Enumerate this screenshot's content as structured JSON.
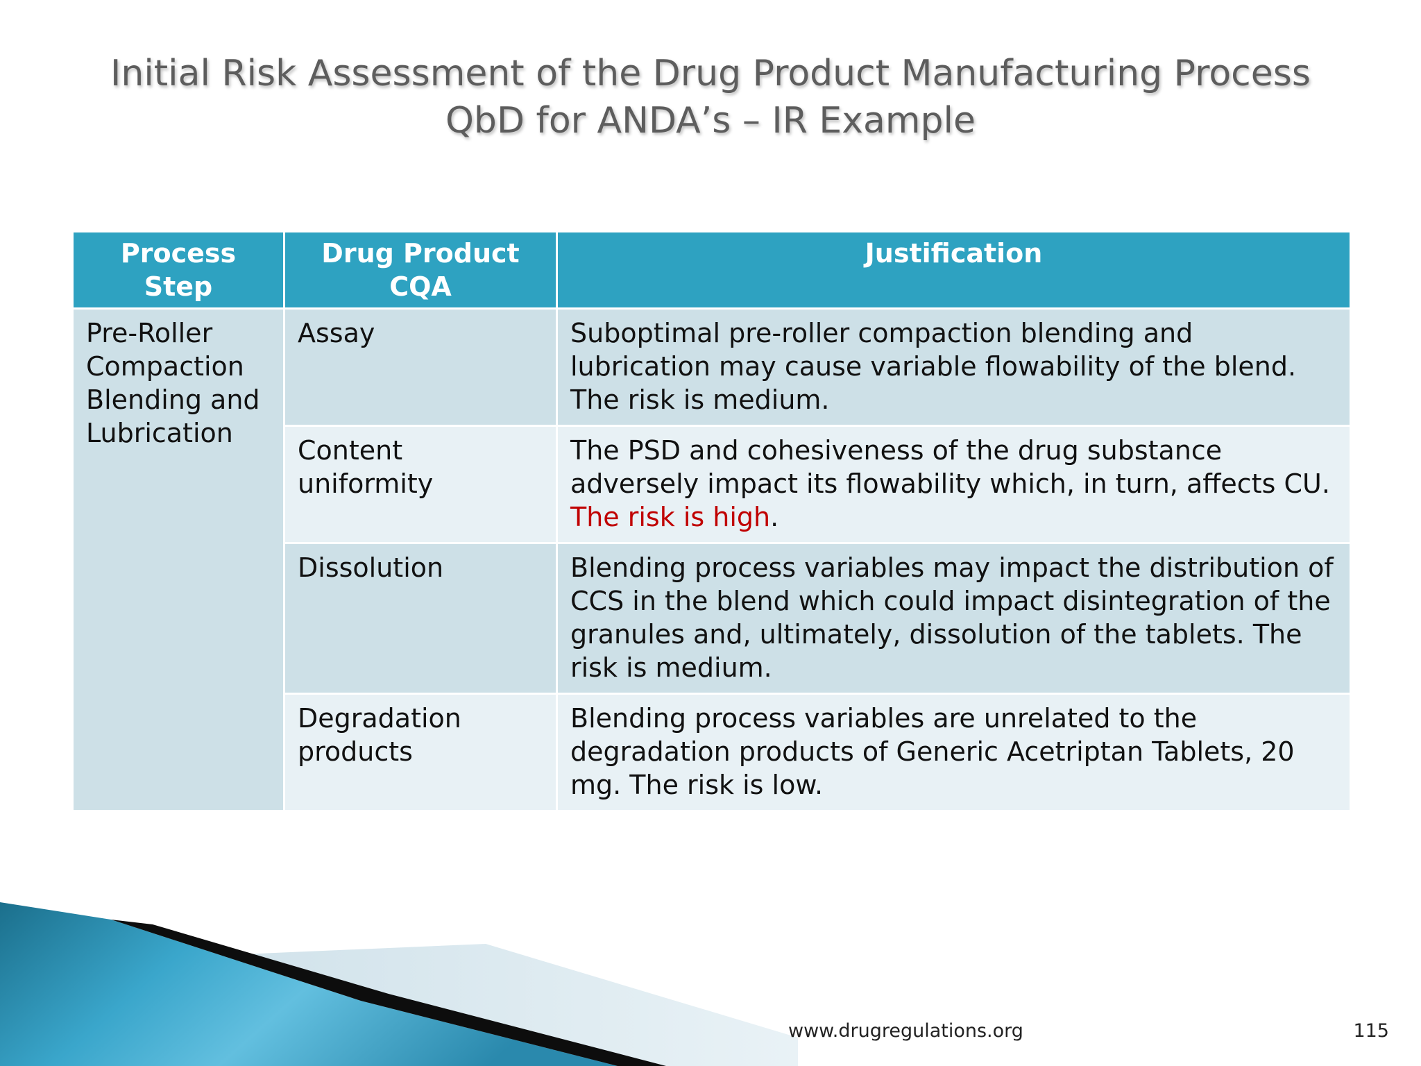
{
  "title": {
    "line1": "Initial Risk Assessment of the Drug Product Manufacturing Process",
    "line2": "QbD for ANDA’s – IR Example"
  },
  "table": {
    "headers": [
      "Process Step",
      "Drug Product CQA",
      "Justification"
    ],
    "process_step": "Pre-Roller Compaction Blending and Lubrication",
    "rows": [
      {
        "cqa": "Assay",
        "justification": "Suboptimal pre-roller compaction blending and lubrication may cause variable flowability of the blend. The risk is medium."
      },
      {
        "cqa": "Content uniformity",
        "justification_pre": "The PSD and cohesiveness of the drug substance adversely impact its flowability which, in turn, affects CU. ",
        "justification_highlight": "The risk is high",
        "justification_post": "."
      },
      {
        "cqa": "Dissolution",
        "justification": "Blending process variables may impact the distribution of CCS in the blend which could impact disintegration of the granules and, ultimately, dissolution of the tablets. The risk is medium."
      },
      {
        "cqa": "Degradation products",
        "justification": "Blending process variables are unrelated to the degradation products of Generic Acetriptan Tablets, 20 mg. The risk is low."
      }
    ]
  },
  "footer": {
    "url": "www.drugregulations.org",
    "page_number": "115"
  },
  "colors": {
    "header_bg": "#2ea2c1",
    "row_dark": "#cde0e7",
    "row_light": "#e8f1f5",
    "highlight": "#c00000",
    "title": "#5d5d5d"
  }
}
